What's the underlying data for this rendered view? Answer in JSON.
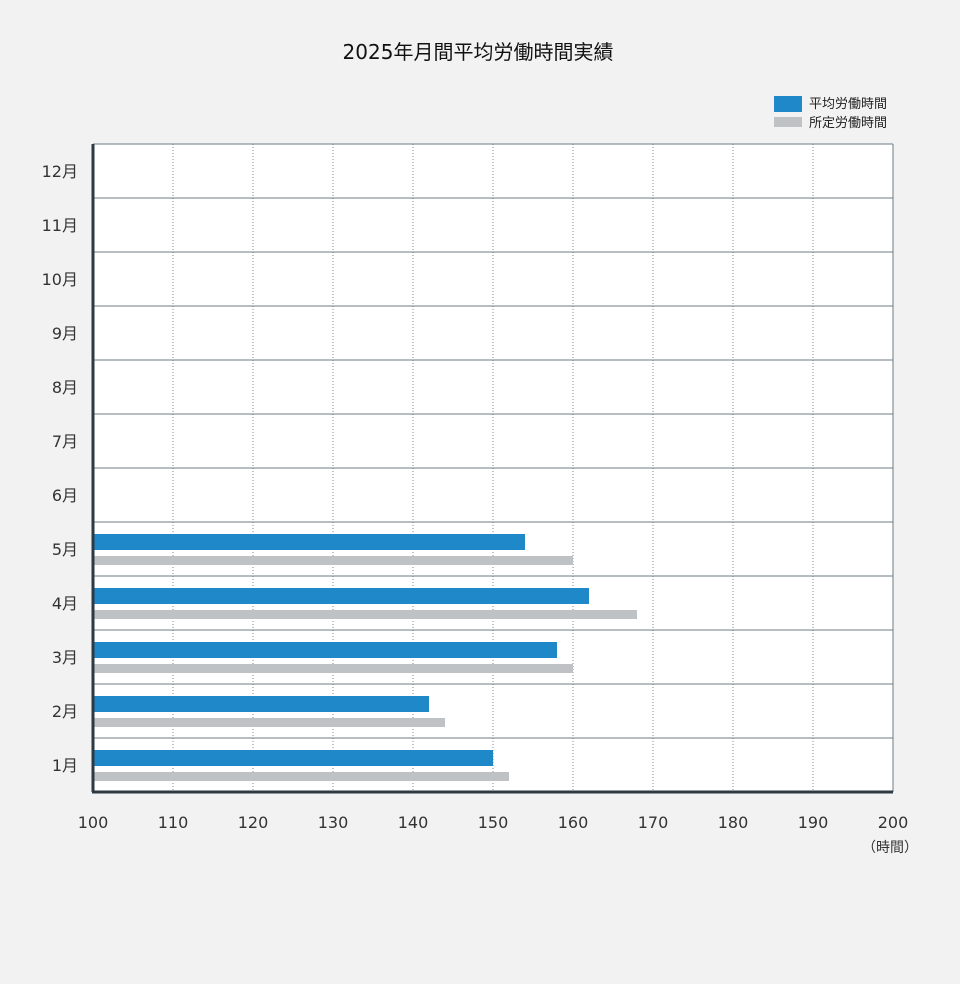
{
  "chart_data": {
    "type": "bar",
    "orientation": "horizontal",
    "title": "2025年月間平均労働時間実績",
    "categories": [
      "1月",
      "2月",
      "3月",
      "4月",
      "5月",
      "6月",
      "7月",
      "8月",
      "9月",
      "10月",
      "11月",
      "12月"
    ],
    "series": [
      {
        "name": "平均労働時間",
        "color": "#1f88c8",
        "values": [
          150,
          142,
          158,
          162,
          154,
          null,
          null,
          null,
          null,
          null,
          null,
          null
        ]
      },
      {
        "name": "所定労働時間",
        "color": "#bec2c5",
        "values": [
          152,
          144,
          160,
          168,
          160,
          null,
          null,
          null,
          null,
          null,
          null,
          null
        ]
      }
    ],
    "xlim": [
      100,
      200
    ],
    "xticks": [
      "100",
      "110",
      "120",
      "130",
      "140",
      "150",
      "160",
      "170",
      "180",
      "190",
      "200"
    ],
    "xunit": "（時間）",
    "grid": true,
    "legend_position": "top-right"
  }
}
